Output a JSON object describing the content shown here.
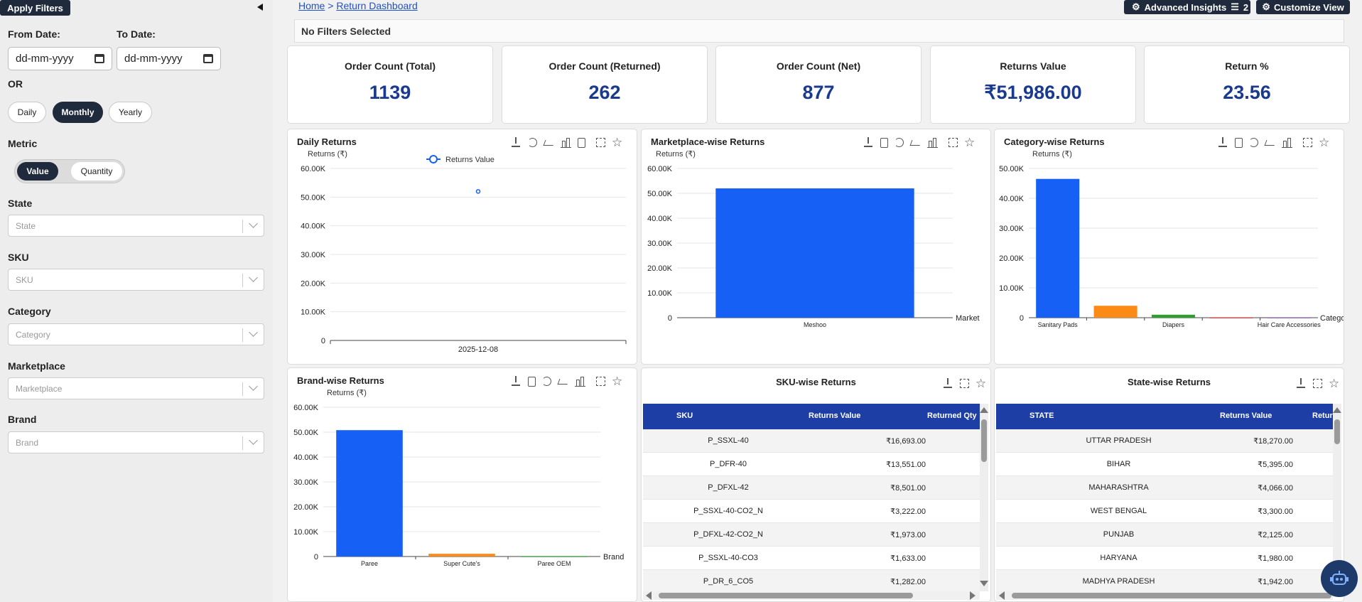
{
  "sidebar": {
    "apply_filters": "Apply Filters",
    "collapse_icon": "caret-left-icon",
    "from_date_label": "From Date:",
    "to_date_label": "To Date:",
    "from_date_placeholder": "dd-mm-yyyy",
    "to_date_placeholder": "dd-mm-yyyy",
    "or_label": "OR",
    "period_options": [
      "Daily",
      "Monthly",
      "Yearly"
    ],
    "period_selected": "Monthly",
    "metric_label": "Metric",
    "metric_options": [
      "Value",
      "Quantity"
    ],
    "metric_selected": "Value",
    "filters": [
      {
        "label": "State",
        "placeholder": "State"
      },
      {
        "label": "SKU",
        "placeholder": "SKU"
      },
      {
        "label": "Category",
        "placeholder": "Category"
      },
      {
        "label": "Marketplace",
        "placeholder": "Marketplace"
      },
      {
        "label": "Brand",
        "placeholder": "Brand"
      }
    ]
  },
  "header": {
    "breadcrumb_home": "Home",
    "breadcrumb_sep": ">",
    "breadcrumb_current": "Return Dashboard",
    "advanced_insights": "Advanced Insights",
    "advanced_insights_count": "2",
    "customize_view": "Customize View",
    "filter_status": "No Filters Selected"
  },
  "kpis": [
    {
      "label": "Order Count (Total)",
      "value": "1139"
    },
    {
      "label": "Order Count (Returned)",
      "value": "262"
    },
    {
      "label": "Order Count (Net)",
      "value": "877"
    },
    {
      "label": "Returns Value",
      "value": "₹51,986.00"
    },
    {
      "label": "Return %",
      "value": "23.56"
    }
  ],
  "colors": {
    "primary_blue": "#1660f5",
    "orange": "#fb8a16",
    "green": "#2ca02c",
    "navy": "#1a3a8f",
    "table_header": "#1d3ea5"
  },
  "chart_data": [
    {
      "id": "daily",
      "type": "line",
      "title": "Daily Returns",
      "ylabel": "Returns (₹)",
      "legend": "Returns Value",
      "legend_position": "top",
      "categories": [
        "2025-12-08"
      ],
      "values": [
        51986
      ],
      "ylim": [
        0,
        60000
      ],
      "yticks": [
        "0",
        "10.00K",
        "20.00K",
        "30.00K",
        "40.00K",
        "50.00K",
        "60.00K"
      ]
    },
    {
      "id": "marketplace",
      "type": "bar",
      "title": "Marketplace-wise Returns",
      "ylabel": "Returns (₹)",
      "xlabel": "Market",
      "categories": [
        "Meshoo"
      ],
      "values": [
        51986
      ],
      "ylim": [
        0,
        60000
      ],
      "yticks": [
        "0",
        "10.00K",
        "20.00K",
        "30.00K",
        "40.00K",
        "50.00K",
        "60.00K"
      ]
    },
    {
      "id": "category",
      "type": "bar",
      "title": "Category-wise Returns",
      "ylabel": "Returns (₹)",
      "xlabel": "Catego",
      "categories": [
        "Sanitary Pads",
        "",
        "Diapers",
        "",
        "Hair Care Accessories"
      ],
      "values": [
        46500,
        4000,
        1000,
        50,
        20
      ],
      "ylim": [
        0,
        50000
      ],
      "yticks": [
        "0",
        "10.00K",
        "20.00K",
        "30.00K",
        "40.00K",
        "50.00K"
      ]
    },
    {
      "id": "brand",
      "type": "bar",
      "title": "Brand-wise Returns",
      "ylabel": "Returns (₹)",
      "xlabel": "Brand",
      "categories": [
        "Paree",
        "Super Cute's",
        "Paree OEM"
      ],
      "values": [
        50800,
        1100,
        60
      ],
      "ylim": [
        0,
        60000
      ],
      "yticks": [
        "0",
        "10.00K",
        "20.00K",
        "30.00K",
        "40.00K",
        "50.00K",
        "60.00K"
      ]
    }
  ],
  "sku_table": {
    "title": "SKU-wise Returns",
    "headers": [
      "SKU",
      "Returns Value",
      "Returned Qty"
    ],
    "rows": [
      [
        "P_SSXL-40",
        "₹16,693.00"
      ],
      [
        "P_DFR-40",
        "₹13,551.00"
      ],
      [
        "P_DFXL-42",
        "₹8,501.00"
      ],
      [
        "P_SSXL-40-CO2_N",
        "₹3,222.00"
      ],
      [
        "P_DFXL-42-CO2_N",
        "₹1,973.00"
      ],
      [
        "P_SSXL-40-CO3",
        "₹1,633.00"
      ],
      [
        "P_DR_6_CO5",
        "₹1,282.00"
      ]
    ]
  },
  "state_table": {
    "title": "State-wise Returns",
    "headers": [
      "STATE",
      "Returns Value",
      "Retur"
    ],
    "rows": [
      [
        "UTTAR PRADESH",
        "₹18,270.00"
      ],
      [
        "BIHAR",
        "₹5,395.00"
      ],
      [
        "MAHARASHTRA",
        "₹4,066.00"
      ],
      [
        "WEST BENGAL",
        "₹3,300.00"
      ],
      [
        "PUNJAB",
        "₹2,125.00"
      ],
      [
        "HARYANA",
        "₹1,980.00"
      ],
      [
        "MADHYA PRADESH",
        "₹1,942.00"
      ]
    ]
  }
}
